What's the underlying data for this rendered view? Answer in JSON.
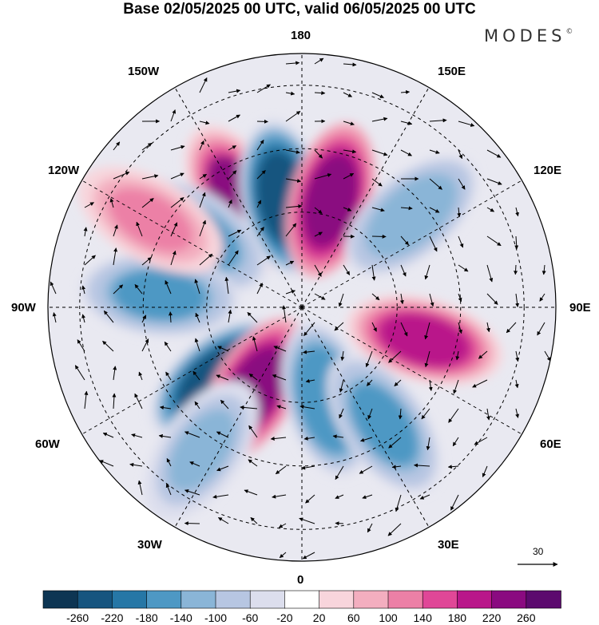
{
  "title": "Base 02/05/2025 00 UTC, valid 06/05/2025 00 UTC",
  "brand": "MODES",
  "brand_mark": "©",
  "longitude_labels": {
    "n180": "180",
    "w150": "150W",
    "e150": "150E",
    "w120": "120W",
    "e120": "120E",
    "w90": "90W",
    "e90": "90E",
    "w60": "60W",
    "e60": "60E",
    "w30": "30W",
    "e30": "30E",
    "s0": "0"
  },
  "reference_vector": {
    "label": "30"
  },
  "colorbar": {
    "ticks": [
      "-260",
      "-220",
      "-180",
      "-140",
      "-100",
      "-60",
      "-20",
      "20",
      "60",
      "100",
      "140",
      "180",
      "220",
      "260"
    ],
    "colors": [
      "#0d3553",
      "#16557f",
      "#2677a6",
      "#4e98c4",
      "#8ab5d7",
      "#b7c6e2",
      "#dcdeed",
      "#ffffff",
      "#f8d5dc",
      "#f3aebf",
      "#ec80a6",
      "#e04797",
      "#b9178a",
      "#8a0a80",
      "#5c0a6e"
    ]
  },
  "chart_data": {
    "type": "heatmap",
    "projection": "north polar stereographic",
    "levels": [
      -260,
      -220,
      -180,
      -140,
      -100,
      -60,
      -20,
      20,
      60,
      100,
      140,
      180,
      220,
      260
    ],
    "anomaly_centers": [
      {
        "name": "positive",
        "lon": -150,
        "lat": 50,
        "value": 220
      },
      {
        "name": "negative",
        "lon": -170,
        "lat": 55,
        "value": -240
      },
      {
        "name": "positive",
        "lon": 165,
        "lat": 55,
        "value": 240
      },
      {
        "name": "negative",
        "lon": 130,
        "lat": 45,
        "value": -140
      },
      {
        "name": "negative",
        "lon": -125,
        "lat": 50,
        "value": -160
      },
      {
        "name": "negative",
        "lon": -95,
        "lat": 45,
        "value": -150
      },
      {
        "name": "negative",
        "lon": -50,
        "lat": 55,
        "value": -240
      },
      {
        "name": "positive",
        "lon": -30,
        "lat": 60,
        "value": 240
      },
      {
        "name": "negative",
        "lon": 15,
        "lat": 60,
        "value": -180
      },
      {
        "name": "positive",
        "lon": 75,
        "lat": 50,
        "value": 200
      },
      {
        "name": "negative",
        "lon": 35,
        "lat": 45,
        "value": -150
      },
      {
        "name": "negative",
        "lon": -35,
        "lat": 35,
        "value": -120
      },
      {
        "name": "positive",
        "lon": -120,
        "lat": 35,
        "value": 100
      }
    ]
  }
}
